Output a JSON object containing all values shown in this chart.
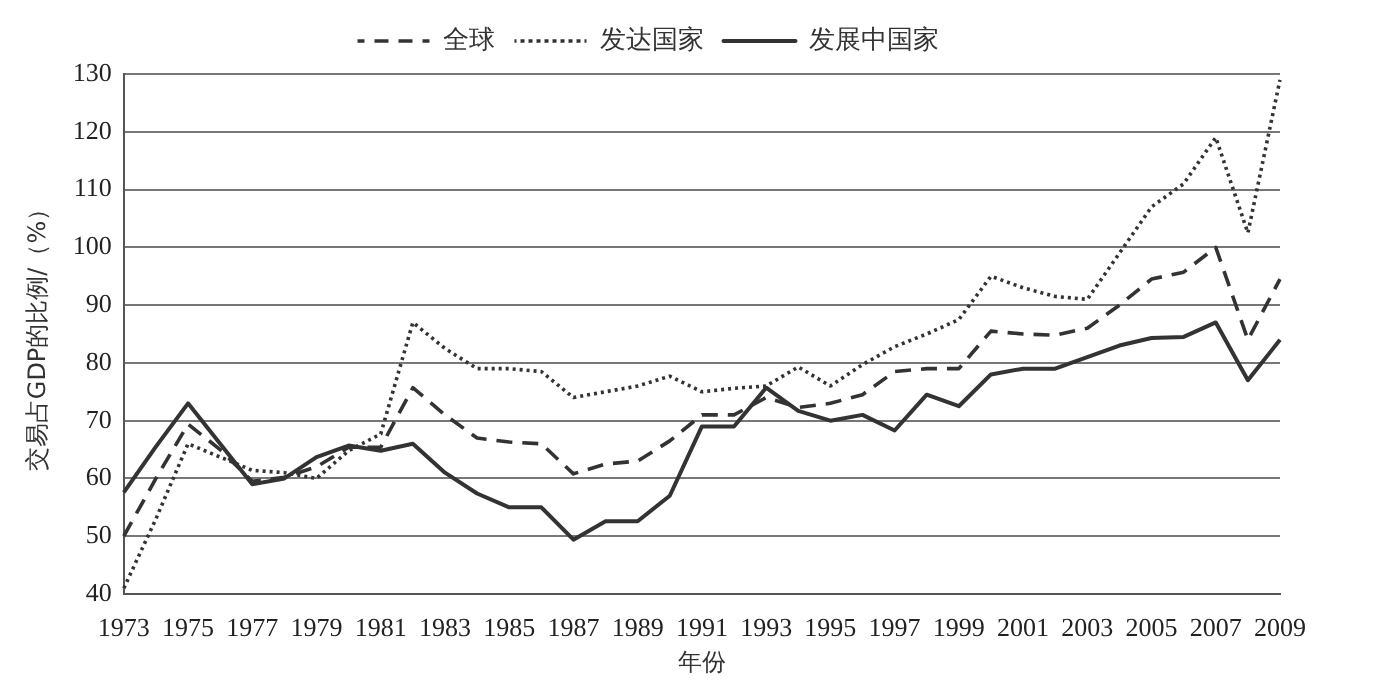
{
  "chart_data": {
    "type": "line",
    "xlabel": "年份",
    "ylabel": "交易占GDP的比例/（%）",
    "categories": [
      "1973",
      null,
      "1975",
      null,
      "1977",
      null,
      "1979",
      null,
      "1981",
      null,
      "1983",
      null,
      "1985",
      null,
      "1987",
      null,
      "1989",
      null,
      "1991",
      null,
      "1993",
      null,
      "1995",
      null,
      "1997",
      null,
      "1999",
      null,
      "2001",
      null,
      "2003",
      null,
      "2005",
      null,
      "2007",
      null,
      "2009"
    ],
    "ylim": [
      40,
      130
    ],
    "yticks": [
      40,
      50,
      60,
      70,
      80,
      90,
      100,
      110,
      120,
      130
    ],
    "grid": "y",
    "legend": "top",
    "marker": "none",
    "series": [
      {
        "name": "全球",
        "color": "#333333",
        "line_style": "dashed",
        "values": [
          50,
          60,
          69.4,
          65,
          59.5,
          60.2,
          62,
          65.4,
          65.4,
          75.7,
          71,
          67,
          66.3,
          66,
          60.8,
          62.5,
          63,
          66.5,
          71,
          71,
          74,
          72.3,
          73,
          74.5,
          78.5,
          79,
          79,
          85.5,
          85,
          84.8,
          86,
          90,
          94.5,
          95.7,
          100,
          84,
          94.5
        ]
      },
      {
        "name": "发达国家",
        "color": "#333333",
        "line_style": "dotted",
        "values": [
          41,
          53,
          66,
          63.7,
          61.4,
          61,
          60,
          64.8,
          67.7,
          87,
          82.5,
          79,
          79,
          78.5,
          74,
          75,
          76,
          77.7,
          75,
          75.6,
          76,
          79.3,
          76,
          79.7,
          82.8,
          85,
          87.5,
          95,
          93,
          91.5,
          91,
          99,
          107,
          111,
          119,
          102.5,
          129
        ]
      },
      {
        "name": "发展中国家",
        "color": "#333333",
        "line_style": "solid",
        "values": [
          57.6,
          65.5,
          73,
          66,
          59,
          60,
          63.7,
          65.7,
          64.8,
          66,
          61,
          57.4,
          55,
          55,
          49.4,
          52.6,
          52.6,
          57,
          69,
          69,
          75.7,
          71.7,
          70,
          71,
          68.3,
          74.5,
          72.5,
          78,
          79,
          79,
          81,
          83,
          84.3,
          84.5,
          87,
          77,
          84
        ]
      }
    ]
  }
}
